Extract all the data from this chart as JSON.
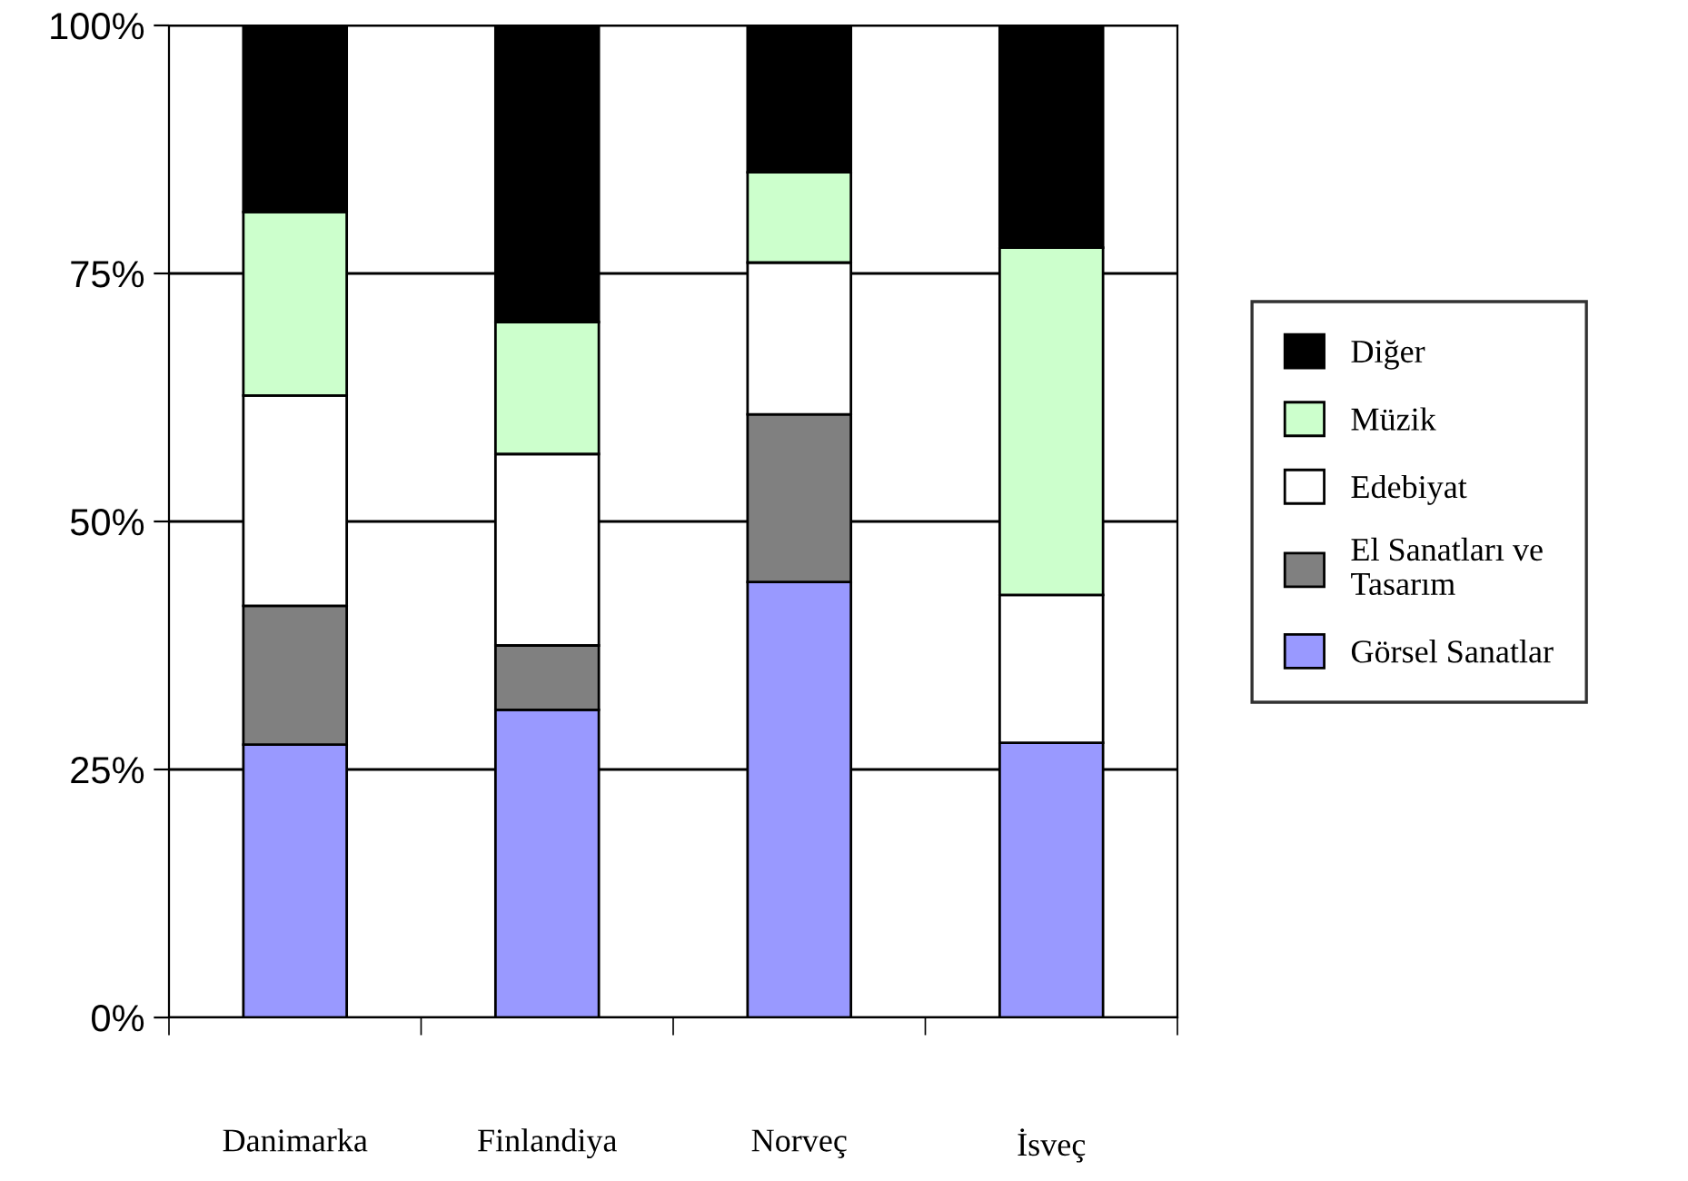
{
  "chart_data": {
    "type": "bar",
    "stacked": true,
    "categories": [
      "Danimarka",
      "Finlandiya",
      "Norveç",
      "İsveç"
    ],
    "series": [
      {
        "name": "Görsel Sanatlar",
        "color": "#9999ff",
        "values": [
          27.5,
          31,
          43.9,
          27.7
        ]
      },
      {
        "name": "El Sanatları ve\nTasarım",
        "color": "#808080",
        "values": [
          14,
          6.5,
          16.9,
          0
        ]
      },
      {
        "name": "Edebiyat",
        "color": "#ffffff",
        "values": [
          21.2,
          19.3,
          15.3,
          14.9
        ]
      },
      {
        "name": "Müzik",
        "color": "#ccffcc",
        "values": [
          18.5,
          13.3,
          9.1,
          35
        ]
      },
      {
        "name": "Diğer",
        "color": "#000000",
        "values": [
          18.8,
          29.9,
          14.8,
          22.4
        ]
      }
    ],
    "ylim": [
      0,
      100
    ],
    "yticks": [
      {
        "value": 0,
        "label": "0%"
      },
      {
        "value": 25,
        "label": "25%"
      },
      {
        "value": 50,
        "label": "50%"
      },
      {
        "value": 75,
        "label": "75%"
      },
      {
        "value": 100,
        "label": "100%"
      }
    ],
    "grid": "y",
    "legend": "right"
  }
}
